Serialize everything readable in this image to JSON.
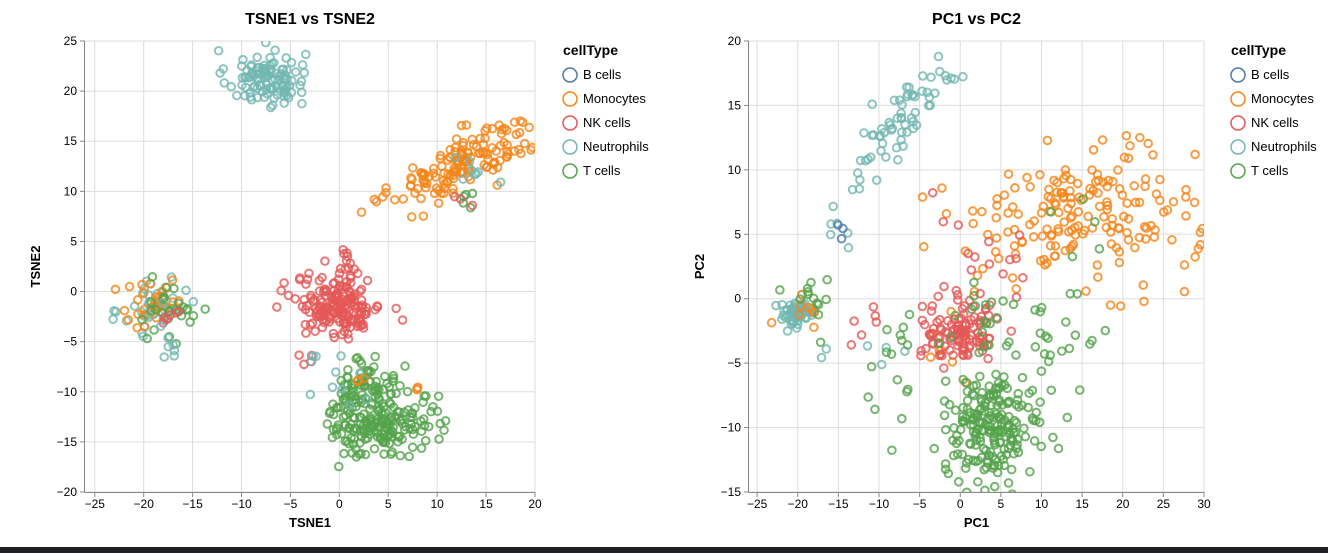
{
  "colors": {
    "B cells": "#4c78a8",
    "Monocytes": "#f58518",
    "NK cells": "#e45756",
    "Neutrophils": "#72b7b2",
    "T cells": "#54a24b",
    "grid": "#dddddd",
    "axis": "#888888",
    "text": "#000000"
  },
  "chart_data": [
    {
      "type": "scatter",
      "title": "TSNE1 vs TSNE2",
      "xlabel": "TSNE1",
      "ylabel": "TSNE2",
      "xlim": [
        -26,
        20
      ],
      "ylim": [
        -20,
        25
      ],
      "xticks": [
        -25,
        -20,
        -15,
        -10,
        -5,
        0,
        5,
        10,
        15,
        20
      ],
      "yticks": [
        -20,
        -15,
        -10,
        -5,
        0,
        5,
        10,
        15,
        20,
        25
      ],
      "grid": true,
      "legend": {
        "title": "cellType",
        "position": "right",
        "entries": [
          "B cells",
          "Monocytes",
          "NK cells",
          "Neutrophils",
          "T cells"
        ]
      },
      "clusters": [
        {
          "series": "Neutrophils",
          "center": [
            -7.5,
            21.3
          ],
          "spread": [
            2.0,
            1.4
          ],
          "count": 110
        },
        {
          "series": "Monocytes",
          "center": [
            13.0,
            13.0
          ],
          "spread": [
            3.8,
            1.4
          ],
          "count": 150,
          "tilt": 0.42
        },
        {
          "series": "Neutrophils",
          "center": [
            14.0,
            12.5
          ],
          "spread": [
            1.5,
            1.0
          ],
          "count": 8
        },
        {
          "series": "T cells",
          "center": [
            13.5,
            9.0
          ],
          "spread": [
            0.8,
            0.6
          ],
          "count": 5
        },
        {
          "series": "NK cells",
          "center": [
            12.5,
            9.0
          ],
          "spread": [
            0.5,
            0.4
          ],
          "count": 3
        },
        {
          "series": "Neutrophils",
          "center": [
            -19.0,
            -1.5
          ],
          "spread": [
            1.6,
            1.5
          ],
          "count": 40
        },
        {
          "series": "Monocytes",
          "center": [
            -19.0,
            -1.0
          ],
          "spread": [
            1.6,
            1.6
          ],
          "count": 28
        },
        {
          "series": "T cells",
          "center": [
            -18.0,
            -2.2
          ],
          "spread": [
            2.3,
            1.4
          ],
          "count": 28
        },
        {
          "series": "NK cells",
          "center": [
            -17.0,
            -2.0
          ],
          "spread": [
            0.7,
            0.8
          ],
          "count": 6
        },
        {
          "series": "Neutrophils",
          "center": [
            -17.5,
            -4.5
          ],
          "spread": [
            0.5,
            1.2
          ],
          "count": 8
        },
        {
          "series": "NK cells",
          "center": [
            0.0,
            -1.5
          ],
          "spread": [
            2.2,
            1.5
          ],
          "count": 170
        },
        {
          "series": "NK cells",
          "center": [
            1.0,
            2.5
          ],
          "spread": [
            0.8,
            1.0
          ],
          "count": 15
        },
        {
          "series": "NK cells",
          "center": [
            -3.0,
            -6.5
          ],
          "spread": [
            0.6,
            0.4
          ],
          "count": 4
        },
        {
          "series": "T cells",
          "center": [
            3.5,
            -12.5
          ],
          "spread": [
            2.3,
            2.0
          ],
          "count": 210
        },
        {
          "series": "T cells",
          "center": [
            2.5,
            -7.5
          ],
          "spread": [
            1.2,
            1.2
          ],
          "count": 20
        },
        {
          "series": "T cells",
          "center": [
            9.0,
            -13.0
          ],
          "spread": [
            1.0,
            1.0
          ],
          "count": 14
        },
        {
          "series": "Neutrophils",
          "center": [
            0.5,
            -9.5
          ],
          "spread": [
            1.5,
            1.3
          ],
          "count": 8
        },
        {
          "series": "Neutrophils",
          "center": [
            -3.0,
            -6.5
          ],
          "spread": [
            0.4,
            0.3
          ],
          "count": 3
        },
        {
          "series": "Monocytes",
          "center": [
            8.0,
            -9.8
          ],
          "spread": [
            0.3,
            0.2
          ],
          "count": 3
        },
        {
          "series": "Monocytes",
          "center": [
            2.0,
            -9.0
          ],
          "spread": [
            0.4,
            0.3
          ],
          "count": 3
        }
      ]
    },
    {
      "type": "scatter",
      "title": "PC1 vs PC2",
      "xlabel": "PC1",
      "ylabel": "PC2",
      "xlim": [
        -26,
        30
      ],
      "ylim": [
        -15,
        20
      ],
      "xticks": [
        -25,
        -20,
        -15,
        -10,
        -5,
        0,
        5,
        10,
        15,
        20,
        25,
        30
      ],
      "yticks": [
        -15,
        -10,
        -5,
        0,
        5,
        10,
        15,
        20
      ],
      "grid": true,
      "legend": {
        "title": "cellType",
        "position": "right",
        "entries": [
          "B cells",
          "Monocytes",
          "NK cells",
          "Neutrophils",
          "T cells"
        ]
      },
      "clusters": [
        {
          "series": "Neutrophils",
          "center": [
            -20.0,
            -1.1
          ],
          "spread": [
            1.3,
            0.5
          ],
          "count": 60
        },
        {
          "series": "Neutrophils",
          "center": [
            -7.5,
            13.5
          ],
          "spread": [
            2.6,
            1.4
          ],
          "count": 60,
          "tilt": 0.55
        },
        {
          "series": "Neutrophils",
          "center": [
            -1.5,
            17.2
          ],
          "spread": [
            1.2,
            0.4
          ],
          "count": 5
        },
        {
          "series": "Neutrophils",
          "center": [
            -15.0,
            5.5
          ],
          "spread": [
            1.5,
            1.0
          ],
          "count": 6
        },
        {
          "series": "Neutrophils",
          "center": [
            -11.0,
            -3.5
          ],
          "spread": [
            3.0,
            1.5
          ],
          "count": 6
        },
        {
          "series": "B cells",
          "center": [
            -14.5,
            5.2
          ],
          "spread": [
            0.4,
            0.6
          ],
          "count": 3
        },
        {
          "series": "Monocytes",
          "center": [
            16.0,
            6.5
          ],
          "spread": [
            6.5,
            2.6
          ],
          "count": 170
        },
        {
          "series": "Monocytes",
          "center": [
            2.0,
            4.5
          ],
          "spread": [
            3.0,
            2.0
          ],
          "count": 14
        },
        {
          "series": "Monocytes",
          "center": [
            -19.5,
            -0.5
          ],
          "spread": [
            1.5,
            0.8
          ],
          "count": 8
        },
        {
          "series": "Monocytes",
          "center": [
            0.0,
            -4.0
          ],
          "spread": [
            3.0,
            2.0
          ],
          "count": 10
        },
        {
          "series": "NK cells",
          "center": [
            0.0,
            -2.5
          ],
          "spread": [
            2.4,
            1.2
          ],
          "count": 110
        },
        {
          "series": "NK cells",
          "center": [
            5.0,
            3.5
          ],
          "spread": [
            5.0,
            2.2
          ],
          "count": 16
        },
        {
          "series": "NK cells",
          "center": [
            -12.0,
            -3.0
          ],
          "spread": [
            2.0,
            1.5
          ],
          "count": 6
        },
        {
          "series": "T cells",
          "center": [
            4.0,
            -10.0
          ],
          "spread": [
            3.0,
            2.0
          ],
          "count": 210
        },
        {
          "series": "T cells",
          "center": [
            11.0,
            -4.0
          ],
          "spread": [
            3.0,
            1.6
          ],
          "count": 20
        },
        {
          "series": "T cells",
          "center": [
            -19.0,
            0.0
          ],
          "spread": [
            1.5,
            1.2
          ],
          "count": 12
        },
        {
          "series": "T cells",
          "center": [
            -8.0,
            -5.0
          ],
          "spread": [
            3.5,
            2.5
          ],
          "count": 16
        },
        {
          "series": "T cells",
          "center": [
            3.0,
            -1.5
          ],
          "spread": [
            2.5,
            1.5
          ],
          "count": 20
        },
        {
          "series": "T cells",
          "center": [
            15.0,
            4.5
          ],
          "spread": [
            3.0,
            2.0
          ],
          "count": 6
        }
      ]
    }
  ]
}
